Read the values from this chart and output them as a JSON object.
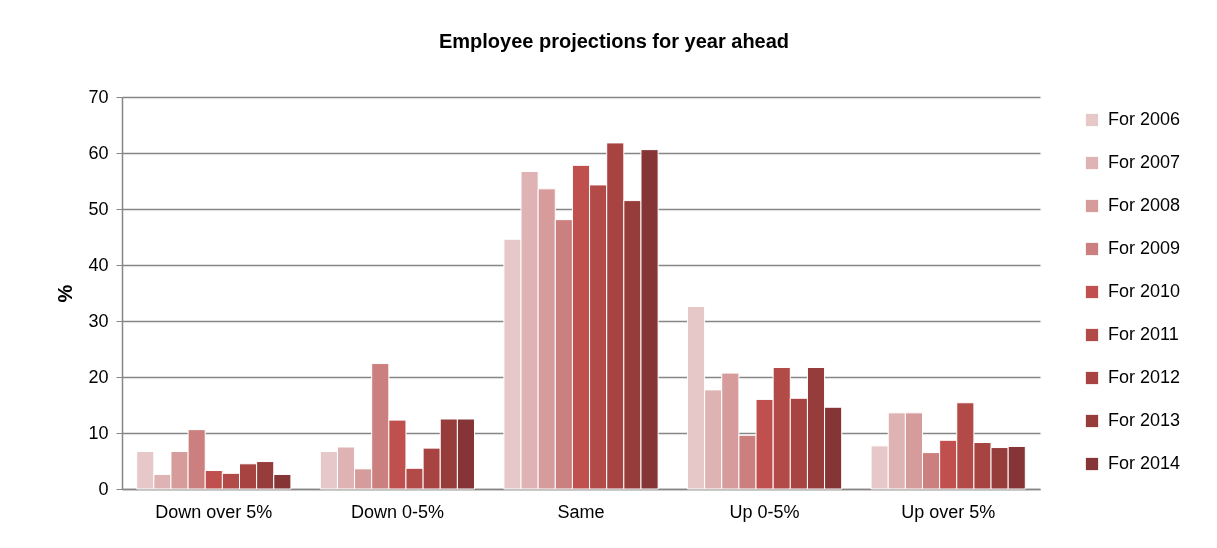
{
  "chart_data": {
    "type": "bar",
    "title": "Employee projections for year ahead",
    "ylabel": "%",
    "categories": [
      "Down over 5%",
      "Down 0-5%",
      "Same",
      "Up 0-5%",
      "Up over 5%"
    ],
    "series": [
      {
        "name": "For 2006",
        "color": "#e6c8c8",
        "values": [
          6.7,
          6.7,
          44.6,
          32.6,
          7.7
        ]
      },
      {
        "name": "For 2007",
        "color": "#dfb3b3",
        "values": [
          2.6,
          7.5,
          56.7,
          17.7,
          13.6
        ]
      },
      {
        "name": "For 2008",
        "color": "#d59c9b",
        "values": [
          6.7,
          3.6,
          53.6,
          20.7,
          13.6
        ]
      },
      {
        "name": "For 2009",
        "color": "#cb7f7e",
        "values": [
          10.6,
          22.4,
          48.1,
          9.6,
          6.5
        ]
      },
      {
        "name": "For 2010",
        "color": "#c0504d",
        "values": [
          3.3,
          12.3,
          57.8,
          16.0,
          8.7
        ]
      },
      {
        "name": "For 2011",
        "color": "#b24a48",
        "values": [
          2.8,
          3.7,
          54.3,
          21.7,
          15.4
        ]
      },
      {
        "name": "For 2012",
        "color": "#a74442",
        "values": [
          4.5,
          7.3,
          61.8,
          16.2,
          8.3
        ]
      },
      {
        "name": "For 2013",
        "color": "#963c3b",
        "values": [
          4.9,
          12.5,
          51.5,
          21.7,
          7.4
        ]
      },
      {
        "name": "For 2014",
        "color": "#863536",
        "values": [
          2.6,
          12.5,
          60.6,
          14.6,
          7.6
        ]
      }
    ],
    "ylim": [
      0,
      70
    ],
    "yticks": [
      0,
      10,
      20,
      30,
      40,
      50,
      60,
      70
    ],
    "grid": "y",
    "legend": "right"
  }
}
